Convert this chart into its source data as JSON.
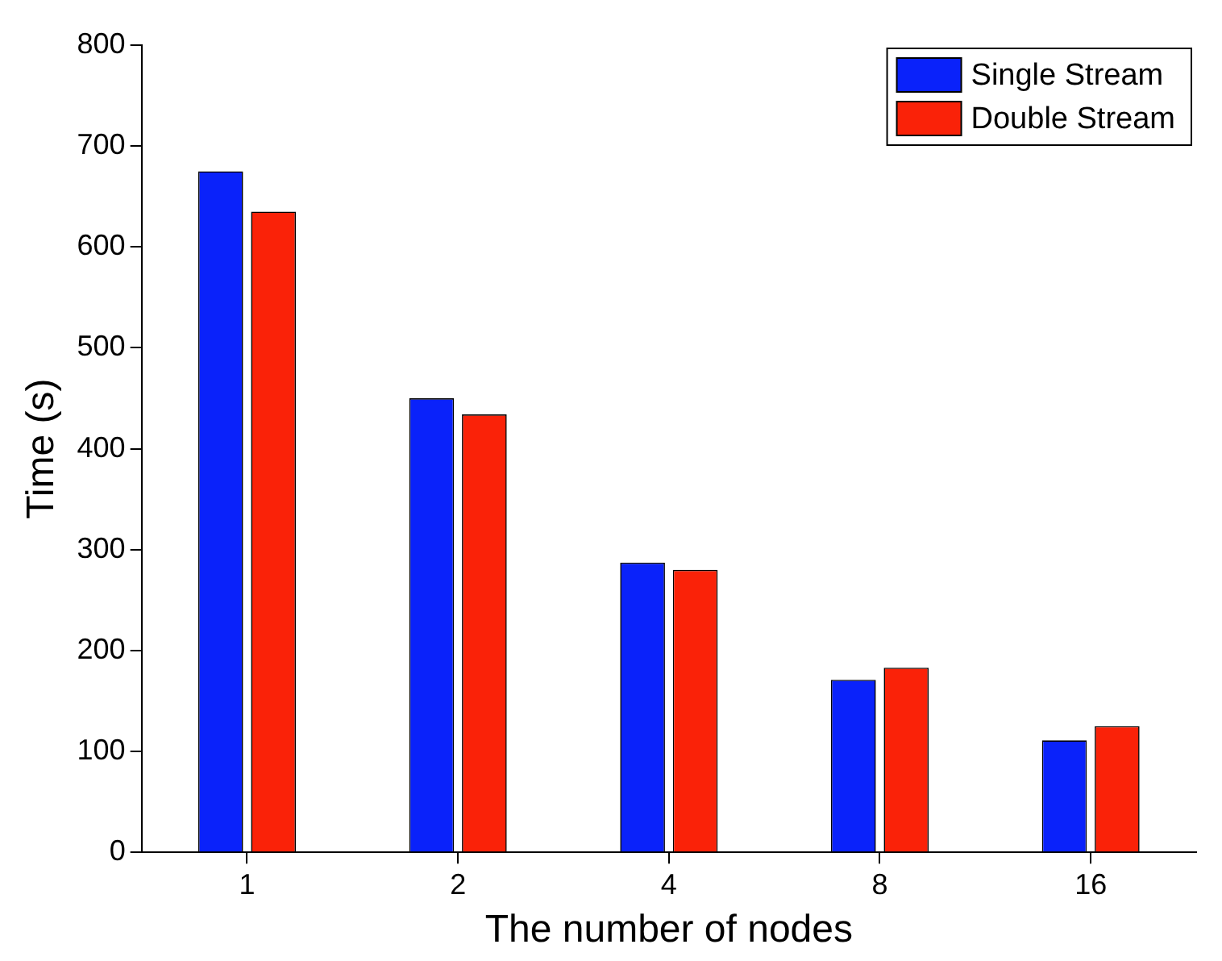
{
  "chart_data": {
    "type": "bar",
    "xlabel": "The number of nodes",
    "ylabel": "Time (s)",
    "categories": [
      "1",
      "2",
      "4",
      "8",
      "16"
    ],
    "series": [
      {
        "name": "Single Stream",
        "color": "#0a22fa",
        "values": [
          675,
          450,
          287,
          171,
          111
        ]
      },
      {
        "name": "Double Stream",
        "color": "#fa2208",
        "values": [
          635,
          434,
          280,
          183,
          125
        ]
      }
    ],
    "ylim": [
      0,
      800
    ],
    "yticks": [
      0,
      100,
      200,
      300,
      400,
      500,
      600,
      700,
      800
    ],
    "legend": "top right"
  }
}
